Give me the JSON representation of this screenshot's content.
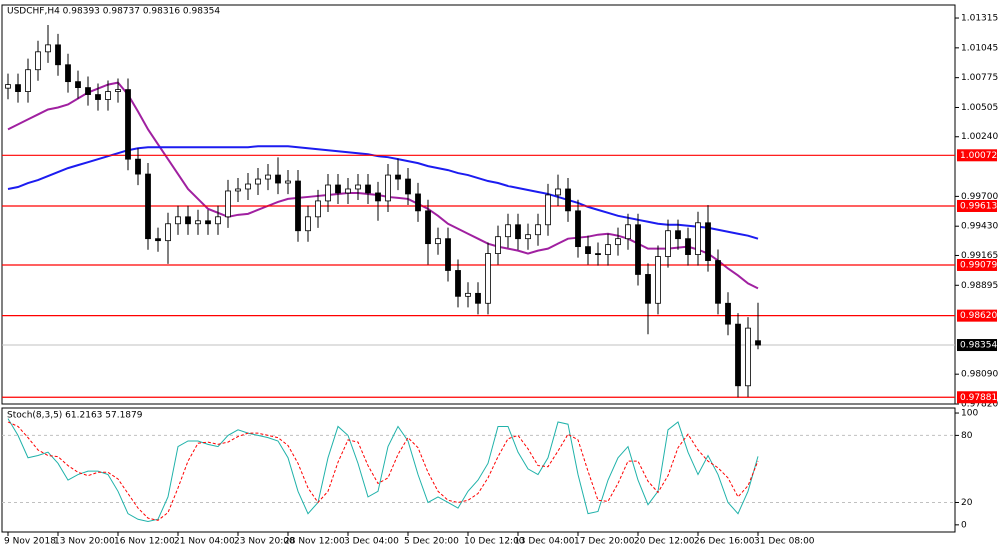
{
  "chart_data": [
    {
      "type": "candlestick",
      "title": "USDCHF,H4 0.98393 0.98737 0.98316 0.98354",
      "categories": [
        "9 Nov 2018",
        null,
        null,
        null,
        null,
        "13 Nov 20:00",
        null,
        null,
        null,
        null,
        null,
        "16 Nov 12:00",
        null,
        null,
        null,
        null,
        null,
        "21 Nov 04:00",
        null,
        null,
        null,
        null,
        null,
        "23 Nov 20:00",
        null,
        null,
        null,
        null,
        "28 Nov 12:00",
        null,
        null,
        null,
        null,
        null,
        "3 Dec 04:00",
        null,
        null,
        null,
        null,
        null,
        "5 Dec 20:00",
        null,
        null,
        null,
        null,
        null,
        "10 Dec 12:00",
        null,
        null,
        null,
        null,
        "13 Dec 04:00",
        null,
        null,
        null,
        null,
        null,
        "17 Dec 20:00",
        null,
        null,
        null,
        null,
        null,
        "20 Dec 12:00",
        null,
        null,
        null,
        null,
        null,
        "26 Dec 16:00",
        null,
        null,
        null,
        null,
        null,
        "31 Dec 08:00"
      ],
      "open": [
        1.0068,
        1.00712,
        1.00649,
        1.00847,
        1.01009,
        1.01072,
        1.00892,
        1.00739,
        1.00685,
        1.00622,
        1.00577,
        1.00649,
        1.00667,
        1.00037,
        0.99902,
        0.99317,
        0.99299,
        0.99452,
        0.99515,
        0.99452,
        0.99479,
        0.99452,
        0.99515,
        0.99749,
        0.99767,
        0.99812,
        0.99857,
        0.99893,
        0.99821,
        0.99839,
        0.99389,
        0.99515,
        0.99659,
        0.99803,
        0.99731,
        0.99767,
        0.99803,
        0.99731,
        0.99659,
        0.99893,
        0.99857,
        0.99722,
        0.99569,
        0.99272,
        0.99317,
        0.99029,
        0.98795,
        0.98822,
        0.98732,
        0.99182,
        0.99335,
        0.99443,
        0.99317,
        0.99353,
        0.99443,
        0.99713,
        0.99767,
        0.99569,
        0.99245,
        0.99182,
        0.99173,
        0.99263,
        0.99317,
        0.99443,
        0.98993,
        0.98732,
        0.99155,
        0.99389,
        0.99317,
        0.99173,
        0.99461,
        0.99119,
        0.98732,
        0.98543,
        0.97985,
        0.98393
      ],
      "high": [
        1.00812,
        1.00812,
        1.00947,
        1.01109,
        1.01252,
        1.01172,
        1.00992,
        1.00839,
        1.00785,
        1.00722,
        1.00749,
        1.00767,
        1.00767,
        1.00137,
        1.00002,
        0.99417,
        0.99552,
        0.99615,
        0.99615,
        0.99579,
        0.99579,
        0.99615,
        0.99849,
        0.99867,
        0.99912,
        0.99957,
        0.99993,
        1.00053,
        0.99939,
        0.99939,
        0.99615,
        0.99759,
        0.99903,
        0.99903,
        0.99867,
        0.99903,
        0.99903,
        0.99831,
        0.99993,
        1.00043,
        0.99957,
        0.99822,
        0.99669,
        0.99417,
        0.99417,
        0.99129,
        0.98922,
        0.98922,
        0.99282,
        0.99435,
        0.99543,
        0.99543,
        0.99453,
        0.99543,
        0.99813,
        0.99897,
        0.99867,
        0.99669,
        0.99345,
        0.99282,
        0.99363,
        0.99417,
        0.99543,
        0.99543,
        0.99093,
        0.99255,
        0.99489,
        0.99489,
        0.99417,
        0.99561,
        0.99621,
        0.99219,
        0.98832,
        0.98643,
        0.98607,
        0.98737
      ],
      "low": [
        1.0058,
        1.00549,
        1.00549,
        1.00747,
        1.00909,
        1.00792,
        1.00639,
        1.00585,
        1.00522,
        1.00477,
        1.00477,
        1.00549,
        0.99937,
        0.99802,
        0.99217,
        0.99199,
        0.99089,
        0.99352,
        0.99352,
        0.99352,
        0.99352,
        0.99352,
        0.99415,
        0.99649,
        0.99667,
        0.99712,
        0.99757,
        0.99721,
        0.99721,
        0.99289,
        0.99289,
        0.99415,
        0.99559,
        0.99631,
        0.99631,
        0.99667,
        0.99631,
        0.99479,
        0.99559,
        0.99757,
        0.99622,
        0.99469,
        0.99082,
        0.99172,
        0.98929,
        0.98695,
        0.98695,
        0.98632,
        0.98632,
        0.99082,
        0.99235,
        0.99217,
        0.99217,
        0.99253,
        0.99343,
        0.99613,
        0.99469,
        0.99145,
        0.99082,
        0.99073,
        0.99073,
        0.99163,
        0.99217,
        0.98893,
        0.98452,
        0.98632,
        0.99055,
        0.99217,
        0.99073,
        0.99073,
        0.99019,
        0.98632,
        0.98443,
        0.97881,
        0.97885,
        0.98316
      ],
      "close": [
        1.00712,
        1.00649,
        1.00847,
        1.01009,
        1.01072,
        1.00892,
        1.00739,
        1.00685,
        1.00622,
        1.00577,
        1.00649,
        1.00667,
        1.00037,
        0.99902,
        0.99317,
        0.99299,
        0.99452,
        0.99515,
        0.99452,
        0.99479,
        0.99452,
        0.99515,
        0.99749,
        0.99767,
        0.99812,
        0.99857,
        0.99893,
        0.99821,
        0.99839,
        0.99389,
        0.99515,
        0.99659,
        0.99803,
        0.99731,
        0.99767,
        0.99803,
        0.99731,
        0.99659,
        0.99893,
        0.99857,
        0.99722,
        0.99569,
        0.99272,
        0.99317,
        0.99029,
        0.98795,
        0.98822,
        0.98732,
        0.99182,
        0.99335,
        0.99443,
        0.99317,
        0.99353,
        0.99443,
        0.99713,
        0.99767,
        0.99569,
        0.99245,
        0.99182,
        0.99173,
        0.99263,
        0.99317,
        0.99443,
        0.98993,
        0.98732,
        0.99155,
        0.99389,
        0.99317,
        0.99173,
        0.99461,
        0.99119,
        0.98732,
        0.98543,
        0.97985,
        0.98507,
        0.98354
      ],
      "series": [
        {
          "color": "#a020a0",
          "values": [
            1.00307,
            1.00352,
            1.00397,
            1.00442,
            1.00487,
            1.00505,
            1.00532,
            1.00586,
            1.0064,
            1.00676,
            1.00712,
            1.0073,
            1.00622,
            1.00469,
            1.00307,
            1.00172,
            1.00037,
            0.99902,
            0.99767,
            0.99677,
            0.99587,
            0.99551,
            0.99515,
            0.99533,
            0.99542,
            0.99578,
            0.99614,
            0.9965,
            0.99677,
            0.99686,
            0.99695,
            0.99704,
            0.99713,
            0.99722,
            0.99731,
            0.99731,
            0.99722,
            0.99713,
            0.99695,
            0.99686,
            0.99677,
            0.99632,
            0.99587,
            0.99524,
            0.99452,
            0.99407,
            0.99362,
            0.99317,
            0.99272,
            0.99245,
            0.99227,
            0.99209,
            0.99182,
            0.99209,
            0.99227,
            0.99272,
            0.99317,
            0.99326,
            0.99335,
            0.99353,
            0.99362,
            0.99344,
            0.99317,
            0.99272,
            0.99227,
            0.99227,
            0.99227,
            0.99236,
            0.99245,
            0.99218,
            0.99182,
            0.99119,
            0.99047,
            0.98984,
            0.98912,
            0.98867
          ]
        },
        {
          "color": "#1c1cf0",
          "values": [
            0.99767,
            0.99785,
            0.99821,
            0.99848,
            0.99884,
            0.9992,
            0.99956,
            0.99983,
            1.0001,
            1.00037,
            1.00064,
            1.00091,
            1.00118,
            1.00136,
            1.00145,
            1.00145,
            1.00145,
            1.00145,
            1.00145,
            1.00145,
            1.00145,
            1.00145,
            1.00145,
            1.00145,
            1.00145,
            1.00154,
            1.00154,
            1.00154,
            1.00154,
            1.00145,
            1.00136,
            1.00127,
            1.00118,
            1.00109,
            1.001,
            1.00091,
            1.00082,
            1.00064,
            1.00055,
            1.00037,
            1.00019,
            1.00001,
            0.99974,
            0.99956,
            0.99938,
            0.99911,
            0.99893,
            0.99866,
            0.99839,
            0.99821,
            0.99794,
            0.99776,
            0.99758,
            0.9974,
            0.99722,
            0.99695,
            0.99668,
            0.99641,
            0.99605,
            0.99578,
            0.99551,
            0.99524,
            0.99506,
            0.99488,
            0.9947,
            0.99452,
            0.99443,
            0.99443,
            0.99434,
            0.99425,
            0.99416,
            0.99398,
            0.9938,
            0.99362,
            0.99344,
            0.99317
          ]
        }
      ],
      "levels": [
        1.00072,
        0.99613,
        0.99079,
        {
          "value": 0.9862,
          "label": "0.98620"
        },
        0.97881
      ],
      "level_color": "#ff0000",
      "last_price": 0.98354,
      "ylim": [
        0.9782,
        1.01433
      ],
      "yticks": [
        1.01315,
        1.01045,
        1.00775,
        1.00505,
        {
          "value": 1.0024,
          "label": "1.00240"
        },
        {
          "value": 0.997,
          "label": "0.99700"
        },
        {
          "value": 0.9943,
          "label": "0.99430"
        },
        0.99165,
        0.98895,
        {
          "value": 0.9809,
          "label": "0.98090"
        },
        {
          "value": 0.9782,
          "label": "0.97820"
        }
      ]
    },
    {
      "type": "line",
      "title": "Stoch(8,3,5) 61.2163 57.1879",
      "series": [
        {
          "color": "#20b2aa",
          "values": [
            95,
            80,
            60,
            62,
            65,
            55,
            40,
            45,
            48,
            48,
            45,
            30,
            10,
            5,
            3,
            5,
            25,
            70,
            75,
            75,
            72,
            70,
            80,
            85,
            82,
            80,
            78,
            75,
            60,
            30,
            10,
            20,
            60,
            88,
            80,
            55,
            25,
            30,
            70,
            88,
            75,
            45,
            20,
            25,
            20,
            15,
            30,
            40,
            55,
            88,
            88,
            65,
            50,
            45,
            60,
            92,
            90,
            45,
            10,
            12,
            40,
            60,
            70,
            40,
            18,
            30,
            85,
            92,
            65,
            45,
            62,
            45,
            20,
            10,
            30,
            61.2163
          ]
        },
        {
          "color": "#ff0000",
          "dash": true,
          "values": [
            92,
            88,
            78,
            67,
            62,
            61,
            53,
            47,
            44,
            47,
            47,
            41,
            28,
            15,
            6,
            4,
            11,
            33,
            57,
            73,
            74,
            72,
            74,
            79,
            82,
            82,
            80,
            78,
            71,
            55,
            33,
            20,
            30,
            56,
            76,
            74,
            53,
            37,
            42,
            63,
            78,
            69,
            47,
            30,
            22,
            20,
            22,
            28,
            42,
            61,
            77,
            80,
            68,
            53,
            52,
            66,
            81,
            76,
            48,
            22,
            21,
            37,
            57,
            57,
            39,
            29,
            44,
            69,
            81,
            67,
            57,
            51,
            42,
            25,
            35,
            57.1879
          ]
        }
      ],
      "levels": [
        80,
        20
      ],
      "ylim": [
        -6.4,
        104.5
      ],
      "yticks": [
        100,
        80,
        20,
        0
      ]
    }
  ]
}
